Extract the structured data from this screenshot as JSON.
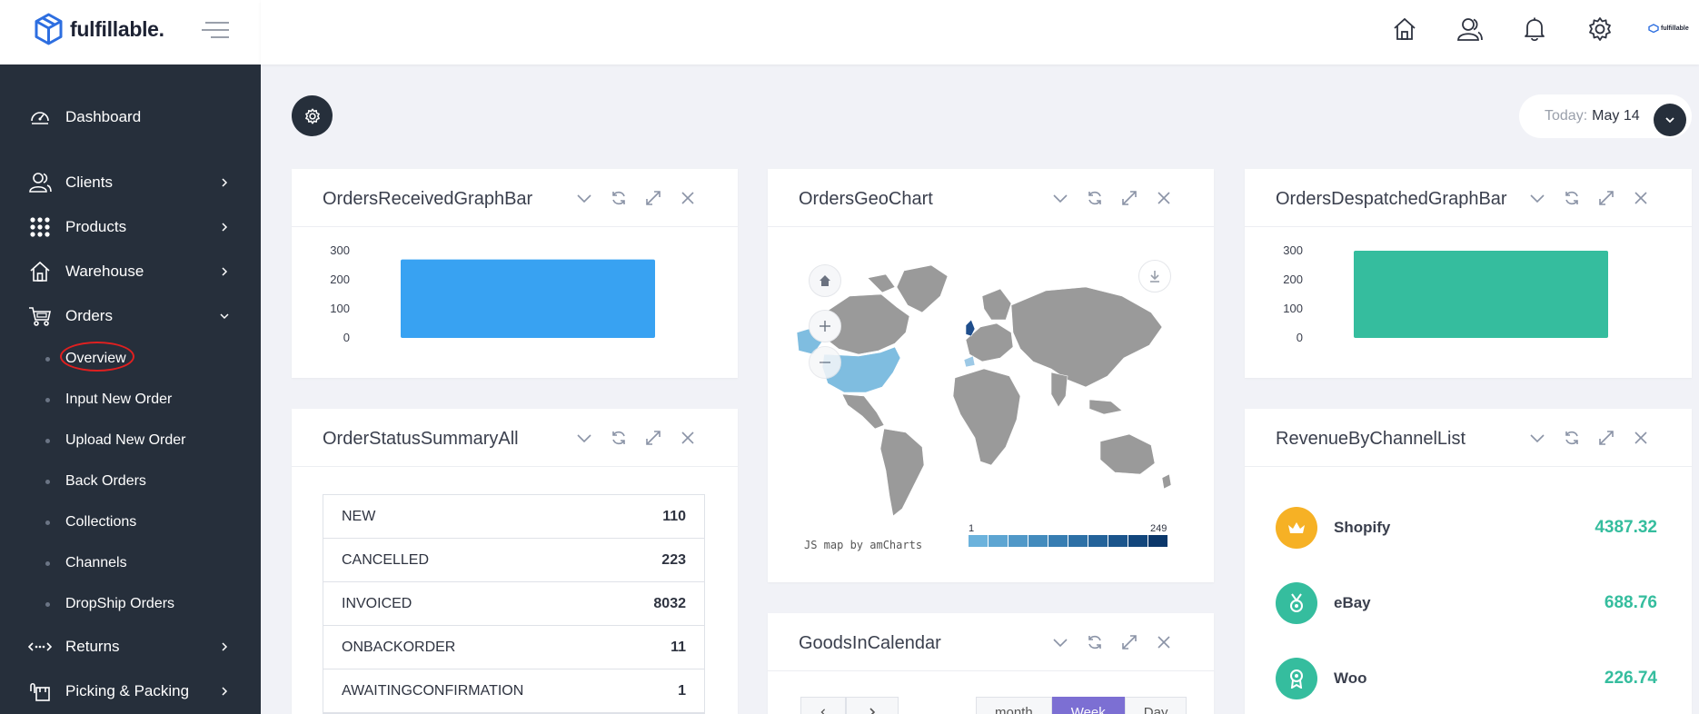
{
  "brand": {
    "name": "fulfillable.",
    "logo_icon": "box-logo-icon"
  },
  "sidebar": {
    "items": [
      {
        "label": "Dashboard",
        "icon": "dashboard-icon"
      },
      {
        "label": "Clients",
        "icon": "clients-icon"
      },
      {
        "label": "Products",
        "icon": "grid-icon"
      },
      {
        "label": "Warehouse",
        "icon": "home-icon"
      },
      {
        "label": "Orders",
        "icon": "cart-icon"
      },
      {
        "label": "Returns",
        "icon": "returns-icon"
      },
      {
        "label": "Picking & Packing",
        "icon": "packing-icon"
      }
    ],
    "orders_sub": [
      {
        "label": "Overview"
      },
      {
        "label": "Input New Order"
      },
      {
        "label": "Upload New Order"
      },
      {
        "label": "Back Orders"
      },
      {
        "label": "Collections"
      },
      {
        "label": "Channels"
      },
      {
        "label": "DropShip Orders"
      }
    ]
  },
  "topbar": {
    "icons": [
      "home-icon",
      "user-icon",
      "bell-icon",
      "gear-icon"
    ],
    "avatar_text": "fulfillable"
  },
  "date": {
    "label": "Today:",
    "value": "May 14"
  },
  "cards": {
    "received": {
      "title": "OrdersReceivedGraphBar"
    },
    "geo": {
      "title": "OrdersGeoChart",
      "credit": "JS map by amCharts",
      "legend_min": "1",
      "legend_max": "249"
    },
    "despatched": {
      "title": "OrdersDespatchedGraphBar"
    },
    "status": {
      "title": "OrderStatusSummaryAll",
      "rows": [
        {
          "status": "NEW",
          "count": "110"
        },
        {
          "status": "CANCELLED",
          "count": "223"
        },
        {
          "status": "INVOICED",
          "count": "8032"
        },
        {
          "status": "ONBACKORDER",
          "count": "11"
        },
        {
          "status": "AWAITINGCONFIRMATION",
          "count": "1"
        }
      ]
    },
    "revenue": {
      "title": "RevenueByChannelList",
      "rows": [
        {
          "channel": "Shopify",
          "value": "4387.32",
          "color": "#f6b125",
          "icon": "crown-icon"
        },
        {
          "channel": "eBay",
          "value": "688.76",
          "color": "#35bd9e",
          "icon": "medal-icon"
        },
        {
          "channel": "Woo",
          "value": "226.74",
          "color": "#35bd9e",
          "icon": "award-icon"
        }
      ]
    },
    "calendar": {
      "title": "GoodsInCalendar",
      "views": [
        "month",
        "Week",
        "Day"
      ],
      "active_view": "Week"
    }
  },
  "chart_data": [
    {
      "type": "bar",
      "title": "OrdersReceivedGraphBar",
      "categories": [
        ""
      ],
      "values": [
        270
      ],
      "ylim": [
        0,
        300
      ],
      "yticks": [
        "300",
        "200",
        "100",
        "0"
      ],
      "color": "#38a2f2"
    },
    {
      "type": "bar",
      "title": "OrdersDespatchedGraphBar",
      "categories": [
        ""
      ],
      "values": [
        300
      ],
      "ylim": [
        0,
        300
      ],
      "yticks": [
        "300",
        "200",
        "100",
        "0"
      ],
      "color": "#35bd9e"
    }
  ]
}
